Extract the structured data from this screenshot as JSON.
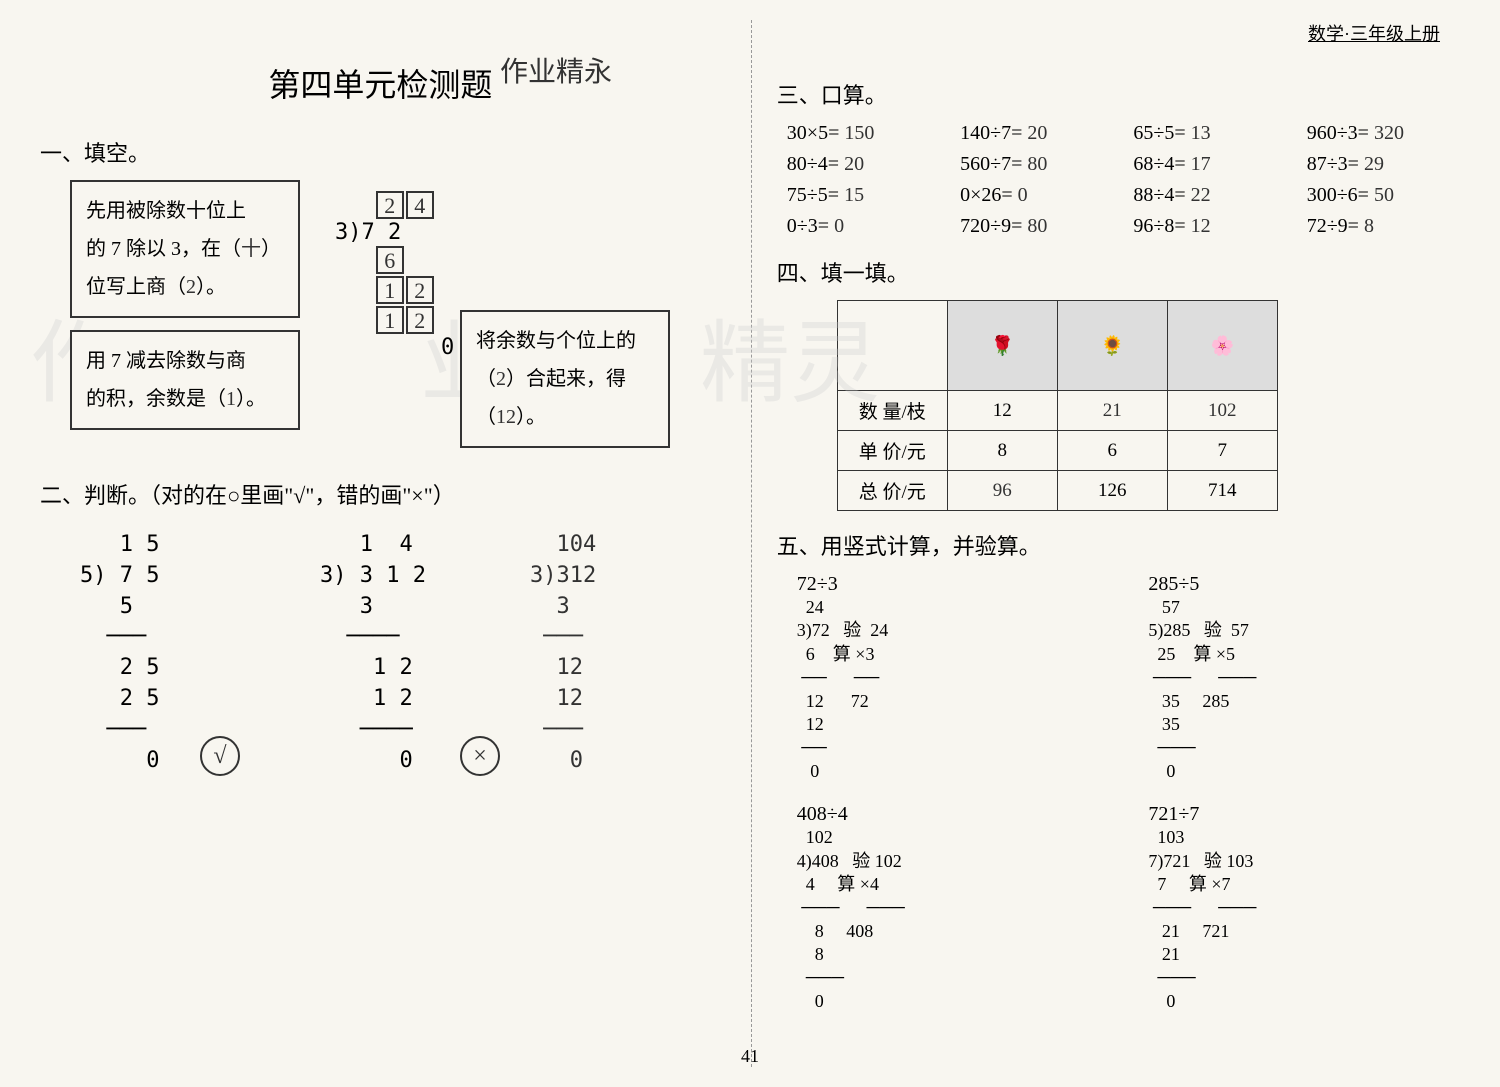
{
  "header": {
    "subject": "数学·三年级上册"
  },
  "page_number": "41",
  "title": "第四单元检测题",
  "handwritten_header": "作业精永",
  "watermarks": [
    "作",
    "业",
    "精灵"
  ],
  "section1": {
    "label": "一、填空。",
    "box1_line1": "先用被除数十位上",
    "box1_line2a": "的 7 除以 3，在（",
    "box1_line2_ans": "十",
    "box1_line2b": "）",
    "box1_line3a": "位写上商（",
    "box1_line3_ans": "2",
    "box1_line3b": "）。",
    "box2_line1": "用 7 减去除数与商",
    "box2_line2a": "的积，余数是（",
    "box2_line2_ans": "1",
    "box2_line2b": "）。",
    "box3_line1": "将余数与个位上的",
    "box3_line2a": "（",
    "box3_line2_ans": "2",
    "box3_line2b": "）合起来，得",
    "box3_line3a": "（",
    "box3_line3_ans": "12",
    "box3_line3b": "）。",
    "division": {
      "quotient": [
        "2",
        "4"
      ],
      "divisor": "3",
      "dividend": "7  2",
      "step1": "6",
      "step2": [
        "1",
        "2"
      ],
      "step3": [
        "1",
        "2"
      ],
      "remainder": "0"
    }
  },
  "section2": {
    "label": "二、判断。（对的在○里画\"√\"，错的画\"×\"）",
    "items": [
      {
        "work": "   1 5\n5) 7 5\n   5\n  ───\n   2 5\n   2 5\n  ───\n     0",
        "mark": "√"
      },
      {
        "work": "   1  4\n3) 3 1 2\n   3\n  ────\n    1 2\n    1 2\n   ────\n      0",
        "mark": "×",
        "correction": "  104\n3)312\n  3\n ───\n  12\n  12\n ───\n   0"
      }
    ]
  },
  "section3": {
    "label": "三、口算。",
    "items": [
      {
        "q": "30×5=",
        "a": "150"
      },
      {
        "q": "140÷7=",
        "a": "20"
      },
      {
        "q": "65÷5=",
        "a": "13"
      },
      {
        "q": "960÷3=",
        "a": "320"
      },
      {
        "q": "80÷4=",
        "a": "20"
      },
      {
        "q": "560÷7=",
        "a": "80"
      },
      {
        "q": "68÷4=",
        "a": "17"
      },
      {
        "q": "87÷3=",
        "a": "29"
      },
      {
        "q": "75÷5=",
        "a": "15"
      },
      {
        "q": "0×26=",
        "a": "0"
      },
      {
        "q": "88÷4=",
        "a": "22"
      },
      {
        "q": "300÷6=",
        "a": "50"
      },
      {
        "q": "0÷3=",
        "a": "0"
      },
      {
        "q": "720÷9=",
        "a": "80"
      },
      {
        "q": "96÷8=",
        "a": "12"
      },
      {
        "q": "72÷9=",
        "a": "8"
      }
    ]
  },
  "section4": {
    "label": "四、填一填。",
    "row_labels": [
      "数 量/枝",
      "单 价/元",
      "总 价/元"
    ],
    "cols": [
      {
        "qty": "12",
        "price": "8",
        "total": "96",
        "total_hw": true
      },
      {
        "qty": "21",
        "qty_hw": true,
        "price": "6",
        "total": "126"
      },
      {
        "qty": "102",
        "qty_hw": true,
        "price": "7",
        "total": "714"
      }
    ]
  },
  "section5": {
    "label": "五、用竖式计算，并验算。",
    "items": [
      {
        "q": "72÷3",
        "work": "  24\n3)72   验  24\n  6    算 ×3\n ──      ──\n  12      72\n  12\n ──\n   0"
      },
      {
        "q": "285÷5",
        "work": "   57\n5)285   验  57\n  25    算 ×5\n ───      ───\n   35     285\n   35\n  ───\n    0"
      },
      {
        "q": "408÷4",
        "work": "  102\n4)408   验 102\n  4     算 ×4\n ───      ───\n    8     408\n    8\n  ───\n    0"
      },
      {
        "q": "721÷7",
        "work": "  103\n7)721   验 103\n  7     算 ×7\n ───      ───\n   21     721\n   21\n  ───\n    0"
      }
    ]
  }
}
